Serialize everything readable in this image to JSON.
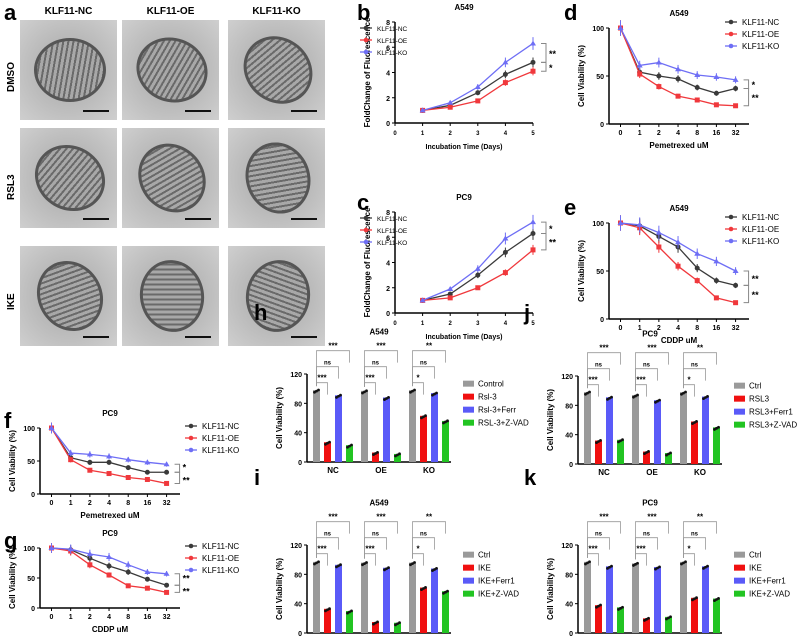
{
  "panel_a": {
    "label": "a",
    "columns": [
      "KLF11-NC",
      "KLF11-OE",
      "KLF11-KO"
    ],
    "rows": [
      "DMSO",
      "RSL3",
      "IKE"
    ]
  },
  "colors": {
    "NC": "#3a3a3a",
    "OE": "#f0383c",
    "KO": "#6e6ef5",
    "ctrl": "#9a9a9a",
    "red": "#f01010",
    "blue": "#5a5af8",
    "green": "#22c422"
  },
  "chart_data": [
    {
      "id": "b",
      "type": "line",
      "label": "b",
      "title": "A549",
      "xlabel": "Incubation Time (Days)",
      "ylabel": "FoldChange of Fluorescence",
      "x": [
        1,
        2,
        3,
        4,
        5
      ],
      "xticks": [
        "0",
        "1",
        "2",
        "3",
        "4",
        "5"
      ],
      "xlim": [
        0,
        5
      ],
      "ylim": [
        0,
        8
      ],
      "yticks": [
        0,
        2,
        4,
        6,
        8
      ],
      "legend": "top-left",
      "series": [
        {
          "name": "KLF11-NC",
          "values": [
            1,
            1.4,
            2.4,
            3.85,
            4.8
          ]
        },
        {
          "name": "KLF11-OE",
          "values": [
            1,
            1.25,
            1.75,
            3.2,
            4.1
          ]
        },
        {
          "name": "KLF11-KO",
          "values": [
            1,
            1.6,
            2.85,
            4.8,
            6.3
          ]
        }
      ],
      "significance": [
        "**",
        "*"
      ]
    },
    {
      "id": "c",
      "type": "line",
      "label": "c",
      "title": "PC9",
      "xlabel": "Incubation Time (Days)",
      "ylabel": "FoldChange of Fluorescence",
      "x": [
        1,
        2,
        3,
        4,
        5
      ],
      "xticks": [
        "0",
        "1",
        "2",
        "3",
        "4",
        "5"
      ],
      "xlim": [
        0,
        5
      ],
      "ylim": [
        0,
        8
      ],
      "yticks": [
        0,
        2,
        4,
        6,
        8
      ],
      "legend": "top-left",
      "series": [
        {
          "name": "KLF11-NC",
          "values": [
            1,
            1.5,
            3,
            4.8,
            6.3
          ]
        },
        {
          "name": "KLF11-OE",
          "values": [
            1,
            1.2,
            2,
            3.2,
            5
          ]
        },
        {
          "name": "KLF11-KO",
          "values": [
            1,
            1.9,
            3.5,
            5.9,
            7.2
          ]
        }
      ],
      "significance": [
        "*",
        "**"
      ]
    },
    {
      "id": "d",
      "type": "line",
      "label": "d",
      "title": "A549",
      "xlabel": "Pemetrexed uM",
      "ylabel": "Cell Viability (%)",
      "categories": [
        "0",
        "1",
        "2",
        "4",
        "8",
        "16",
        "32"
      ],
      "ylim": [
        0,
        100
      ],
      "yticks": [
        0,
        50,
        100
      ],
      "legend": "top-right",
      "series": [
        {
          "name": "KLF11-NC",
          "values": [
            100,
            54,
            50,
            47,
            38,
            32,
            37
          ]
        },
        {
          "name": "KLF11-OE",
          "values": [
            100,
            52,
            39,
            29,
            25,
            20,
            19
          ]
        },
        {
          "name": "KLF11-KO",
          "values": [
            100,
            61,
            64,
            57,
            51,
            49,
            46
          ]
        }
      ],
      "significance": [
        "*",
        "**"
      ]
    },
    {
      "id": "e",
      "type": "line",
      "label": "e",
      "title": "A549",
      "xlabel": "CDDP uM",
      "ylabel": "Cell Viability (%)",
      "categories": [
        "0",
        "1",
        "2",
        "4",
        "8",
        "16",
        "32"
      ],
      "ylim": [
        0,
        100
      ],
      "yticks": [
        0,
        50,
        100
      ],
      "legend": "top-right",
      "series": [
        {
          "name": "KLF11-NC",
          "values": [
            100,
            97,
            86,
            75,
            53,
            40,
            35
          ]
        },
        {
          "name": "KLF11-OE",
          "values": [
            100,
            95,
            75,
            55,
            40,
            22,
            17
          ]
        },
        {
          "name": "KLF11-KO",
          "values": [
            100,
            98,
            90,
            80,
            68,
            60,
            50
          ]
        }
      ],
      "significance": [
        "**",
        "**"
      ]
    },
    {
      "id": "f",
      "type": "line",
      "label": "f",
      "title": "PC9",
      "xlabel": "Pemetrexed uM",
      "ylabel": "Cell Viability (%)",
      "categories": [
        "0",
        "1",
        "2",
        "4",
        "8",
        "16",
        "32"
      ],
      "ylim": [
        0,
        100
      ],
      "yticks": [
        0,
        50,
        100
      ],
      "legend": "top-right",
      "series": [
        {
          "name": "KLF11-NC",
          "values": [
            100,
            55,
            48,
            48,
            40,
            33,
            33
          ]
        },
        {
          "name": "KLF11-OE",
          "values": [
            100,
            52,
            36,
            31,
            25,
            22,
            16
          ]
        },
        {
          "name": "KLF11-KO",
          "values": [
            100,
            62,
            60,
            57,
            52,
            48,
            45
          ]
        }
      ],
      "significance": [
        "*",
        "**"
      ]
    },
    {
      "id": "g",
      "type": "line",
      "label": "g",
      "title": "PC9",
      "xlabel": "CDDP uM",
      "ylabel": "Cell Viability (%)",
      "categories": [
        "0",
        "1",
        "2",
        "4",
        "8",
        "16",
        "32"
      ],
      "ylim": [
        0,
        100
      ],
      "yticks": [
        0,
        50,
        100
      ],
      "legend": "top-right",
      "series": [
        {
          "name": "KLF11-NC",
          "values": [
            100,
            97,
            83,
            70,
            60,
            48,
            38
          ]
        },
        {
          "name": "KLF11-OE",
          "values": [
            100,
            95,
            72,
            55,
            37,
            33,
            26
          ]
        },
        {
          "name": "KLF11-KO",
          "values": [
            100,
            98,
            90,
            85,
            72,
            60,
            57
          ]
        }
      ],
      "significance": [
        "**",
        "**"
      ]
    },
    {
      "id": "h",
      "type": "bar",
      "label": "h",
      "title": "A549",
      "ylabel": "Cell Viability (%)",
      "categories": [
        "NC",
        "OE",
        "KO"
      ],
      "ylim": [
        0,
        120
      ],
      "yticks": [
        0,
        40,
        80,
        120
      ],
      "legend": "right",
      "series": [
        {
          "name": "Control",
          "values": [
            98,
            97,
            98
          ]
        },
        {
          "name": "Rsl-3",
          "values": [
            27,
            13,
            63
          ]
        },
        {
          "name": "Rsl-3+Ferr",
          "values": [
            91,
            88,
            94
          ]
        },
        {
          "name": "RSL-3+Z-VAD",
          "values": [
            23,
            11,
            56
          ]
        }
      ],
      "significance": [
        [
          "***",
          "ns",
          "***"
        ],
        [
          "***",
          "ns",
          "***"
        ],
        [
          "*",
          "ns",
          "**"
        ]
      ]
    },
    {
      "id": "j",
      "type": "bar",
      "label": "j",
      "title": "PC9",
      "ylabel": "Cell Viability (%)",
      "categories": [
        "NC",
        "OE",
        "KO"
      ],
      "ylim": [
        0,
        120
      ],
      "yticks": [
        0,
        40,
        80,
        120
      ],
      "legend": "right",
      "series": [
        {
          "name": "Ctrl",
          "values": [
            98,
            94,
            98
          ]
        },
        {
          "name": "RSL3",
          "values": [
            32,
            17,
            58
          ]
        },
        {
          "name": "RSL3+Ferr1",
          "values": [
            91,
            87,
            92
          ]
        },
        {
          "name": "RSL3+Z-VAD",
          "values": [
            33,
            15,
            50
          ]
        }
      ],
      "significance": [
        [
          "***",
          "ns",
          "***"
        ],
        [
          "***",
          "ns",
          "***"
        ],
        [
          "*",
          "ns",
          "**"
        ]
      ]
    },
    {
      "id": "i",
      "type": "bar",
      "label": "i",
      "title": "A549",
      "ylabel": "Cell Viability (%)",
      "categories": [
        "NC",
        "OE",
        "KO"
      ],
      "ylim": [
        0,
        120
      ],
      "yticks": [
        0,
        40,
        80,
        120
      ],
      "legend": "right",
      "series": [
        {
          "name": "Ctrl",
          "values": [
            97,
            96,
            96
          ]
        },
        {
          "name": "IKE",
          "values": [
            33,
            15,
            62
          ]
        },
        {
          "name": "IKE+Ferr1",
          "values": [
            93,
            89,
            88
          ]
        },
        {
          "name": "IKE+Z-VAD",
          "values": [
            30,
            14,
            57
          ]
        }
      ],
      "significance": [
        [
          "***",
          "ns",
          "***"
        ],
        [
          "***",
          "ns",
          "***"
        ],
        [
          "*",
          "ns",
          "**"
        ]
      ]
    },
    {
      "id": "k",
      "type": "bar",
      "label": "k",
      "title": "PC9",
      "ylabel": "Cell Viability (%)",
      "categories": [
        "NC",
        "OE",
        "KO"
      ],
      "ylim": [
        0,
        120
      ],
      "yticks": [
        0,
        40,
        80,
        120
      ],
      "legend": "right",
      "series": [
        {
          "name": "Ctrl",
          "values": [
            97,
            95,
            97
          ]
        },
        {
          "name": "IKE",
          "values": [
            38,
            20,
            48
          ]
        },
        {
          "name": "IKE+Ferr1",
          "values": [
            91,
            90,
            91
          ]
        },
        {
          "name": "IKE+Z-VAD",
          "values": [
            35,
            22,
            47
          ]
        }
      ],
      "significance": [
        [
          "***",
          "ns",
          "***"
        ],
        [
          "***",
          "ns",
          "***"
        ],
        [
          "*",
          "ns",
          "**"
        ]
      ]
    }
  ]
}
